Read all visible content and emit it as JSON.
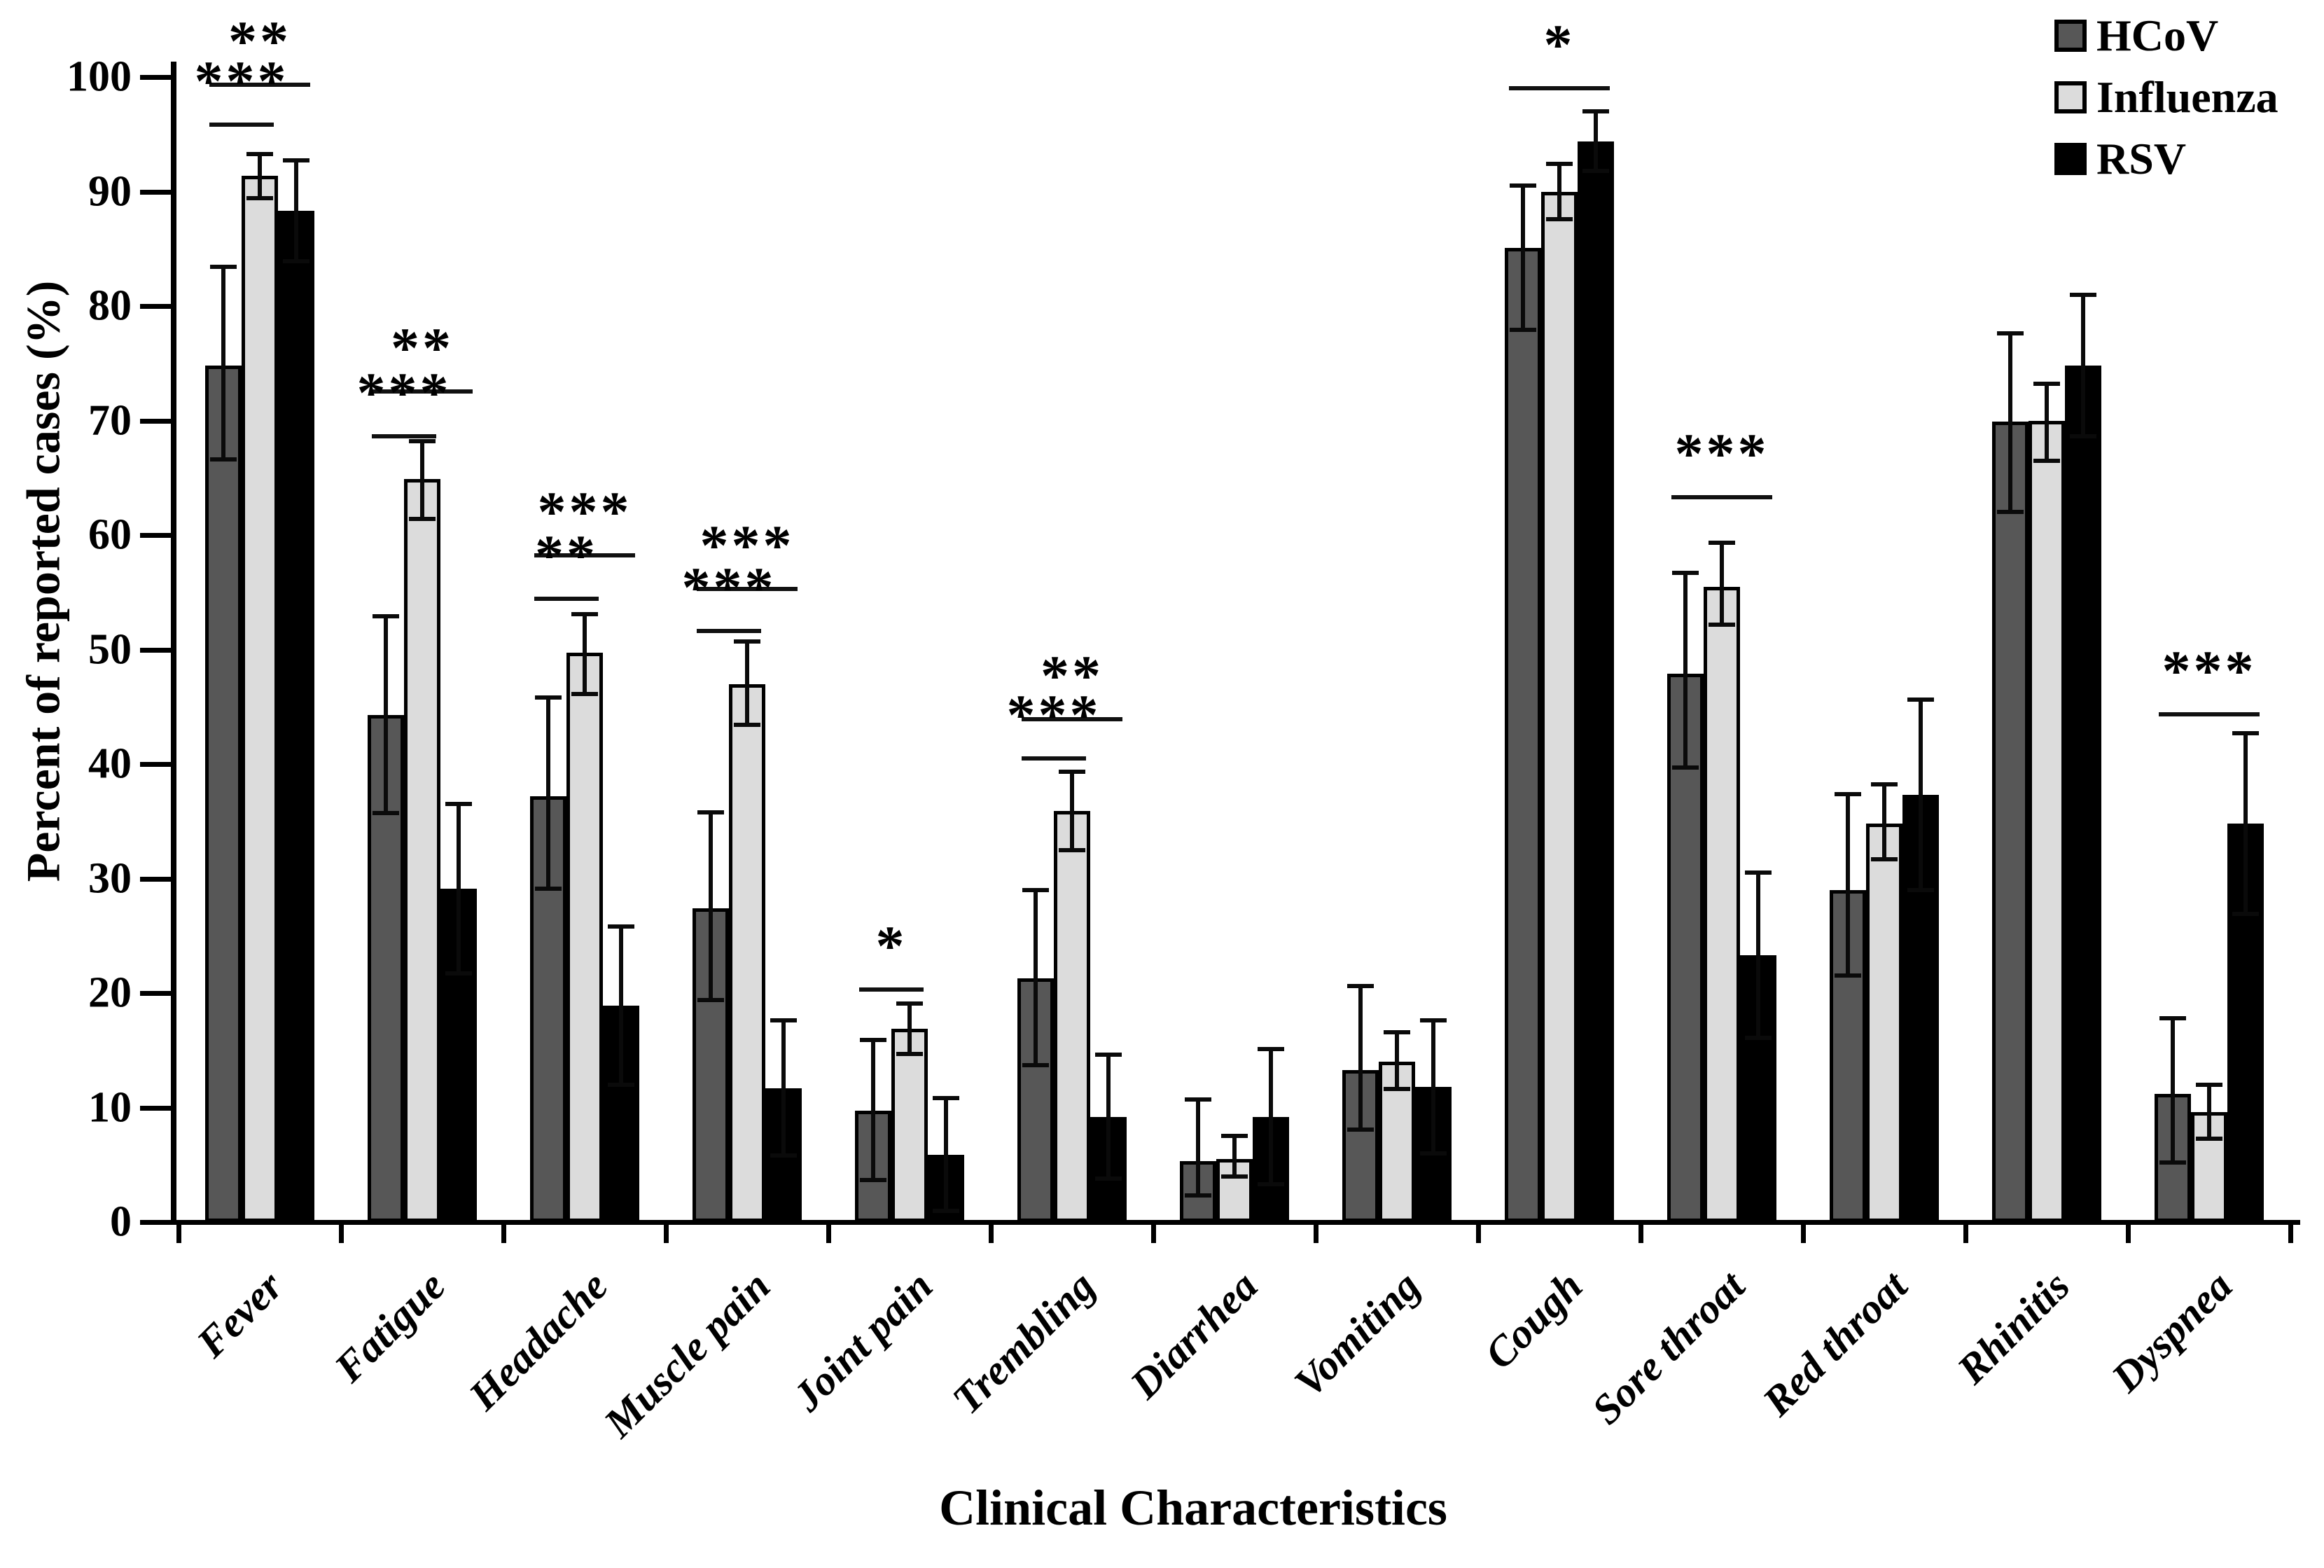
{
  "chart_data": {
    "type": "bar",
    "title": "",
    "xlabel": "Clinical Characteristics",
    "ylabel": "Percent of reported cases (%)",
    "ylim": [
      0,
      100
    ],
    "yticks": [
      0,
      10,
      20,
      30,
      40,
      50,
      60,
      70,
      80,
      90,
      100
    ],
    "grid": false,
    "legend_position": "top-right",
    "categories": [
      "Fever",
      "Fatigue",
      "Headache",
      "Muscle pain",
      "Joint pain",
      "Trembling",
      "Diarrhea",
      "Vomiting",
      "Cough",
      "Sore throat",
      "Red throat",
      "Rhinitis",
      "Dyspnea"
    ],
    "series": [
      {
        "name": "HCoV",
        "color": "#575757",
        "values": [
          74.8,
          44.3,
          37.2,
          27.4,
          9.7,
          21.3,
          5.3,
          13.3,
          85.1,
          47.9,
          29.0,
          69.9,
          11.2
        ],
        "err_up": [
          8.6,
          8.6,
          8.6,
          8.4,
          6.2,
          7.7,
          5.4,
          7.3,
          5.4,
          8.8,
          8.4,
          7.7,
          6.6
        ],
        "err_down": [
          8.2,
          8.6,
          8.1,
          8.0,
          6.0,
          7.6,
          3.0,
          5.2,
          7.2,
          8.2,
          7.5,
          7.9,
          6.0
        ]
      },
      {
        "name": "Influenza",
        "color": "#dcdcdc",
        "values": [
          91.4,
          64.9,
          49.7,
          47.0,
          16.9,
          35.9,
          5.5,
          14.0,
          90.0,
          55.5,
          34.8,
          70.0,
          9.6
        ],
        "err_up": [
          1.9,
          3.3,
          3.4,
          3.7,
          2.2,
          3.4,
          2.0,
          2.6,
          2.4,
          3.8,
          3.4,
          3.2,
          2.4
        ],
        "err_down": [
          2.0,
          3.5,
          3.6,
          3.6,
          2.2,
          3.4,
          1.5,
          2.4,
          2.4,
          3.3,
          3.1,
          3.5,
          2.3
        ]
      },
      {
        "name": "RSV",
        "color": "#000000",
        "values": [
          88.3,
          29.1,
          18.9,
          11.7,
          5.9,
          9.2,
          9.2,
          11.8,
          94.4,
          23.3,
          37.3,
          74.8,
          34.8
        ],
        "err_up": [
          4.4,
          7.4,
          6.9,
          5.9,
          4.9,
          5.4,
          5.9,
          5.8,
          2.6,
          7.2,
          8.3,
          6.2,
          7.9
        ],
        "err_down": [
          4.4,
          7.4,
          6.9,
          5.9,
          4.9,
          5.4,
          5.9,
          5.8,
          2.6,
          7.2,
          8.3,
          6.2,
          7.9
        ]
      }
    ],
    "significance": [
      {
        "category": "Fever",
        "lines": [
          {
            "label": "**",
            "from": "HCoV",
            "to": "RSV",
            "y": 99.5
          },
          {
            "label": "***",
            "from": "HCoV",
            "to": "Influenza",
            "y": 96.0
          }
        ]
      },
      {
        "category": "Fatigue",
        "lines": [
          {
            "label": "**",
            "from": "HCoV",
            "to": "RSV",
            "y": 72.7
          },
          {
            "label": "***",
            "from": "HCoV",
            "to": "Influenza",
            "y": 68.8
          }
        ]
      },
      {
        "category": "Headache",
        "lines": [
          {
            "label": "***",
            "from": "HCoV",
            "to": "RSV",
            "y": 58.4
          },
          {
            "label": "**",
            "from": "HCoV",
            "to": "Influenza",
            "y": 54.6
          }
        ]
      },
      {
        "category": "Muscle pain",
        "lines": [
          {
            "label": "***",
            "from": "HCoV",
            "to": "RSV",
            "y": 55.5
          },
          {
            "label": "***",
            "from": "HCoV",
            "to": "Influenza",
            "y": 51.8
          }
        ]
      },
      {
        "category": "Joint pain",
        "lines": [
          {
            "label": "*",
            "from": "HCoV",
            "to": "Influenza",
            "y": 20.5
          }
        ]
      },
      {
        "category": "Trembling",
        "lines": [
          {
            "label": "**",
            "from": "HCoV",
            "to": "RSV",
            "y": 44.1
          },
          {
            "label": "***",
            "from": "HCoV",
            "to": "Influenza",
            "y": 40.7
          }
        ]
      },
      {
        "category": "Cough",
        "lines": [
          {
            "label": "*",
            "from": "HCoV",
            "to": "RSV",
            "y": 99.2
          }
        ]
      },
      {
        "category": "Sore throat",
        "lines": [
          {
            "label": "***",
            "from": "HCoV",
            "to": "RSV",
            "y": 63.5
          }
        ]
      },
      {
        "category": "Dyspnea",
        "lines": [
          {
            "label": "***",
            "from": "HCoV",
            "to": "RSV",
            "y": 44.5
          }
        ]
      }
    ]
  }
}
